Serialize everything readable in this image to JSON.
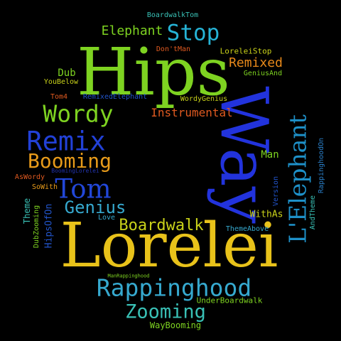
{
  "words": [
    {
      "text": "Hips",
      "color": "#7ed321",
      "rotation": "horizontal"
    },
    {
      "text": "Lorelei",
      "color": "#e8c21a",
      "rotation": "horizontal"
    },
    {
      "text": "Way",
      "color": "#2233dd",
      "rotation": "vertical-down"
    },
    {
      "text": "L'Elephant",
      "color": "#1e90c8",
      "rotation": "vertical-up"
    },
    {
      "text": "Rappinghood",
      "color": "#36a9cf",
      "rotation": "horizontal"
    },
    {
      "text": "Remix",
      "color": "#2241d8",
      "rotation": "horizontal"
    },
    {
      "text": "Wordy",
      "color": "#7ed321",
      "rotation": "horizontal"
    },
    {
      "text": "Tom",
      "color": "#2247d8",
      "rotation": "horizontal"
    },
    {
      "text": "Booming",
      "color": "#e89b1a",
      "rotation": "horizontal"
    },
    {
      "text": "Stop",
      "color": "#26b3d6",
      "rotation": "horizontal"
    },
    {
      "text": "Zooming",
      "color": "#39c0b5",
      "rotation": "horizontal"
    },
    {
      "text": "Genius",
      "color": "#36a9cf",
      "rotation": "horizontal"
    },
    {
      "text": "Boardwalk",
      "color": "#c9d21a",
      "rotation": "horizontal"
    },
    {
      "text": "Elephant",
      "color": "#7ed321",
      "rotation": "horizontal"
    },
    {
      "text": "Remixed",
      "color": "#e8891a",
      "rotation": "horizontal"
    },
    {
      "text": "Instrumental",
      "color": "#e05a20",
      "rotation": "horizontal"
    },
    {
      "text": "Dub",
      "color": "#7ed321",
      "rotation": "horizontal"
    },
    {
      "text": "Man",
      "color": "#7ed321",
      "rotation": "horizontal"
    },
    {
      "text": "WithAs",
      "color": "#c9d21a",
      "rotation": "horizontal"
    },
    {
      "text": "WayBooming",
      "color": "#7ed321",
      "rotation": "horizontal"
    },
    {
      "text": "UnderBoardwalk",
      "color": "#7ed321",
      "rotation": "horizontal"
    },
    {
      "text": "ThemeAbove",
      "color": "#36a9cf",
      "rotation": "horizontal"
    },
    {
      "text": "Love",
      "color": "#36a9cf",
      "rotation": "horizontal"
    },
    {
      "text": "HipsOfOn",
      "color": "#2255cc",
      "rotation": "vertical-up"
    },
    {
      "text": "Theme",
      "color": "#39c0b5",
      "rotation": "vertical-up"
    },
    {
      "text": "DubZooming",
      "color": "#7ed321",
      "rotation": "vertical-up"
    },
    {
      "text": "SoWith",
      "color": "#e89b1a",
      "rotation": "horizontal"
    },
    {
      "text": "AsWordy",
      "color": "#e05a20",
      "rotation": "horizontal"
    },
    {
      "text": "BoomingLorelei",
      "color": "#2233aa",
      "rotation": "horizontal"
    },
    {
      "text": "Tom4",
      "color": "#e05a20",
      "rotation": "horizontal"
    },
    {
      "text": "YouBelow",
      "color": "#c9d21a",
      "rotation": "horizontal"
    },
    {
      "text": "RemixedElephant",
      "color": "#2255cc",
      "rotation": "horizontal"
    },
    {
      "text": "WordyGenius",
      "color": "#c9d21a",
      "rotation": "horizontal"
    },
    {
      "text": "GeniusAnd",
      "color": "#7ed321",
      "rotation": "horizontal"
    },
    {
      "text": "LoreleiStop",
      "color": "#c9d21a",
      "rotation": "horizontal"
    },
    {
      "text": "Don'tMan",
      "color": "#e05a20",
      "rotation": "horizontal"
    },
    {
      "text": "BoardwalkTom",
      "color": "#39c0b5",
      "rotation": "horizontal"
    },
    {
      "text": "ManRappinghood",
      "color": "#7ed321",
      "rotation": "horizontal"
    },
    {
      "text": "Version",
      "color": "#2255cc",
      "rotation": "vertical-up"
    },
    {
      "text": "AndTheme",
      "color": "#39c0b5",
      "rotation": "vertical-up"
    },
    {
      "text": "RappinghoodOn",
      "color": "#2a7fc8",
      "rotation": "vertical-up"
    }
  ]
}
